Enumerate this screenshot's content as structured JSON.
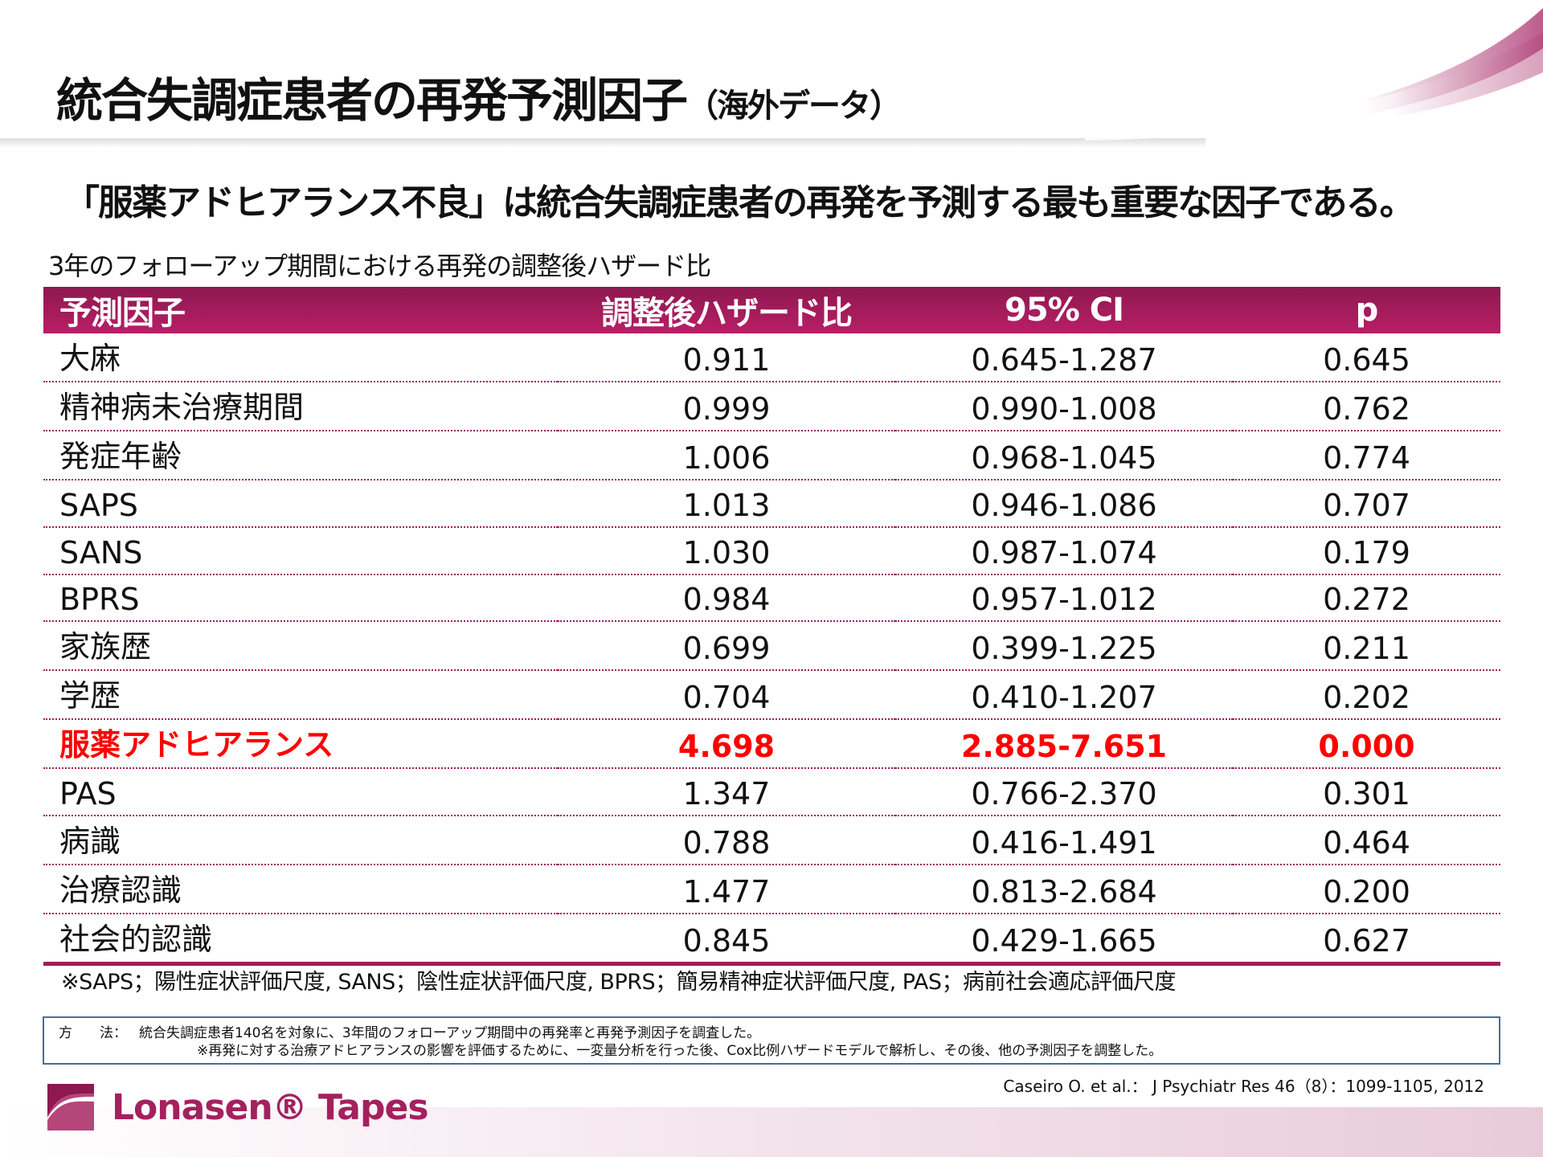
{
  "title": "統合失調症患者の再発予測因子",
  "title_sub": "（海外データ）",
  "headline": "「服薬アドヒアランス不良」は統合失調症患者の再発を予測する最も重要な因子である。",
  "caption": "3年のフォローアップ期間における再発の調整後ハザード比",
  "table": {
    "headers": [
      "予測因子",
      "調整後ハザード比",
      "95% CI",
      "p"
    ],
    "rows": [
      [
        "大麻",
        "0.911",
        "0.645-1.287",
        "0.645"
      ],
      [
        "精神病未治療期間",
        "0.999",
        "0.990-1.008",
        "0.762"
      ],
      [
        "発症年齢",
        "1.006",
        "0.968-1.045",
        "0.774"
      ],
      [
        "SAPS",
        "1.013",
        "0.946-1.086",
        "0.707"
      ],
      [
        "SANS",
        "1.030",
        "0.987-1.074",
        "0.179"
      ],
      [
        "BPRS",
        "0.984",
        "0.957-1.012",
        "0.272"
      ],
      [
        "家族歴",
        "0.699",
        "0.399-1.225",
        "0.211"
      ],
      [
        "学歴",
        "0.704",
        "0.410-1.207",
        "0.202"
      ],
      [
        "服薬アドヒアランス",
        "4.698",
        "2.885-7.651",
        "0.000"
      ],
      [
        "PAS",
        "1.347",
        "0.766-2.370",
        "0.301"
      ],
      [
        "病識",
        "0.788",
        "0.416-1.491",
        "0.464"
      ],
      [
        "治療認識",
        "1.477",
        "0.813-2.684",
        "0.200"
      ],
      [
        "社会的認識",
        "0.845",
        "0.429-1.665",
        "0.627"
      ]
    ],
    "highlight_row": 8,
    "highlight_color": "#ff0000",
    "header_color": "#a01c5c"
  },
  "footnote": "※SAPS；陽性症状評価尺度, SANS；陰性症状評価尺度, BPRS；簡易精神症状評価尺度, PAS；病前社会適応評価尺度",
  "method": {
    "label": "方　　法：",
    "line1": "統合失調症患者140名を対象に、3年間のフォローアップ期間中の再発率と再発予測因子を調査した。",
    "line2": "※再発に対する治療アドヒアランスの影響を評価するために、一変量分析を行った後、Cox比例ハザードモデルで解析し、その後、他の予測因子を調整した。"
  },
  "citation": "Caseiro O. et al.： J Psychiatr Res 46（8）：1099-1105, 2012",
  "logo": "Lonasen® Tapes"
}
